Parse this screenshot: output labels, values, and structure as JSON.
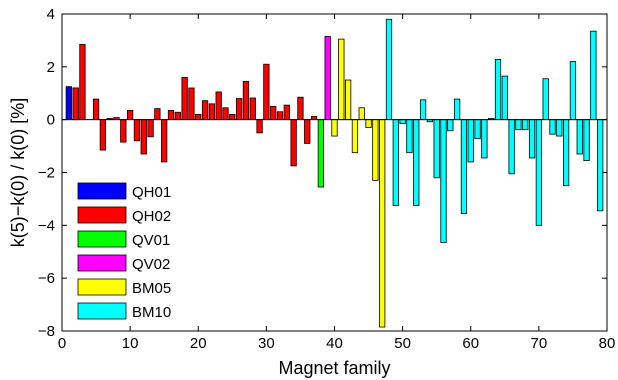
{
  "chart_data": {
    "type": "bar",
    "xlabel": "Magnet family",
    "ylabel": "k(5)−k(0) / k(0) [%]",
    "xlim": [
      0,
      80
    ],
    "ylim": [
      -8,
      4
    ],
    "xticks": [
      0,
      10,
      20,
      30,
      40,
      50,
      60,
      70,
      80
    ],
    "yticks": [
      -8,
      -6,
      -4,
      -2,
      0,
      2,
      4
    ],
    "grid": false,
    "legend_position": "bottom-left",
    "colors": {
      "QH01": "#0000ff",
      "QH02": "#ff0000",
      "QV01": "#00ff00",
      "QV02": "#ff00ff",
      "BM05": "#ffff00",
      "BM10": "#00ffff"
    },
    "series": [
      {
        "name": "QH01",
        "x": [
          1,
          2
        ],
        "values": [
          1.25,
          1.2
        ]
      },
      {
        "name": "QH02",
        "x": [
          2,
          3,
          5,
          6,
          7,
          8,
          9,
          10,
          11,
          12,
          13,
          14,
          15,
          16,
          17,
          18,
          19,
          20,
          21,
          22,
          23,
          24,
          25,
          26,
          27,
          28,
          29,
          30,
          31,
          32,
          33,
          34,
          35,
          36,
          37
        ],
        "values": [
          1.2,
          2.85,
          0.78,
          -1.15,
          0.05,
          0.08,
          -0.85,
          0.35,
          -0.8,
          -1.3,
          -0.65,
          0.42,
          -1.6,
          0.35,
          0.28,
          1.6,
          1.2,
          0.2,
          0.72,
          0.6,
          1.05,
          0.45,
          0.2,
          0.8,
          1.45,
          0.82,
          -0.5,
          2.1,
          0.5,
          0.3,
          0.55,
          -1.75,
          0.85,
          -0.9,
          0.12
        ]
      },
      {
        "name": "QV01",
        "x": [
          38
        ],
        "values": [
          -2.55
        ]
      },
      {
        "name": "QV02",
        "x": [
          39
        ],
        "values": [
          3.15
        ]
      },
      {
        "name": "BM05",
        "x": [
          40,
          41,
          42,
          43,
          44,
          45,
          46,
          47
        ],
        "values": [
          -0.62,
          3.05,
          1.5,
          -1.25,
          0.45,
          -0.3,
          -2.3,
          -7.85
        ]
      },
      {
        "name": "BM10",
        "x": [
          48,
          49,
          50,
          51,
          52,
          53,
          54,
          55,
          56,
          57,
          58,
          59,
          60,
          61,
          62,
          63,
          64,
          65,
          66,
          67,
          68,
          69,
          70,
          71,
          72,
          73,
          74,
          75,
          76,
          77,
          78,
          79
        ],
        "values": [
          3.8,
          -3.25,
          -0.15,
          -1.25,
          -3.25,
          0.75,
          -0.08,
          -2.2,
          -4.65,
          -0.42,
          0.78,
          -3.55,
          -1.6,
          -0.72,
          -1.45,
          0.05,
          2.28,
          1.65,
          -2.05,
          -0.38,
          -0.38,
          -1.45,
          -4.0,
          1.55,
          -0.55,
          -0.62,
          -2.5,
          2.2,
          -1.3,
          -1.55,
          3.35,
          -3.45
        ]
      }
    ]
  }
}
